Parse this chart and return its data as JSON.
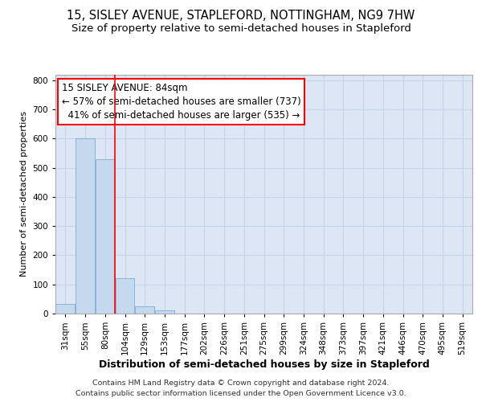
{
  "title": "15, SISLEY AVENUE, STAPLEFORD, NOTTINGHAM, NG9 7HW",
  "subtitle": "Size of property relative to semi-detached houses in Stapleford",
  "xlabel": "Distribution of semi-detached houses by size in Stapleford",
  "ylabel": "Number of semi-detached properties",
  "footer1": "Contains HM Land Registry data © Crown copyright and database right 2024.",
  "footer2": "Contains public sector information licensed under the Open Government Licence v3.0.",
  "bar_labels": [
    "31sqm",
    "55sqm",
    "80sqm",
    "104sqm",
    "129sqm",
    "153sqm",
    "177sqm",
    "202sqm",
    "226sqm",
    "251sqm",
    "275sqm",
    "299sqm",
    "324sqm",
    "348sqm",
    "373sqm",
    "397sqm",
    "421sqm",
    "446sqm",
    "470sqm",
    "495sqm",
    "519sqm"
  ],
  "bar_values": [
    33,
    600,
    530,
    120,
    25,
    10,
    0,
    0,
    0,
    0,
    0,
    0,
    0,
    0,
    0,
    0,
    0,
    0,
    0,
    0,
    0
  ],
  "bar_color": "#c5d8ee",
  "bar_edge_color": "#7aadd4",
  "grid_color": "#c8d4e8",
  "bg_color": "#dce6f5",
  "property_line_x": 2.5,
  "property_sqm": 84,
  "pct_smaller": 57,
  "count_smaller": 737,
  "pct_larger": 41,
  "count_larger": 535,
  "annotation_label": "15 SISLEY AVENUE: 84sqm",
  "ylim": [
    0,
    820
  ],
  "yticks": [
    0,
    100,
    200,
    300,
    400,
    500,
    600,
    700,
    800
  ],
  "title_fontsize": 10.5,
  "subtitle_fontsize": 9.5,
  "ylabel_fontsize": 8,
  "xlabel_fontsize": 9,
  "tick_fontsize": 7.5,
  "annotation_fontsize": 8.5,
  "footer_fontsize": 6.8
}
